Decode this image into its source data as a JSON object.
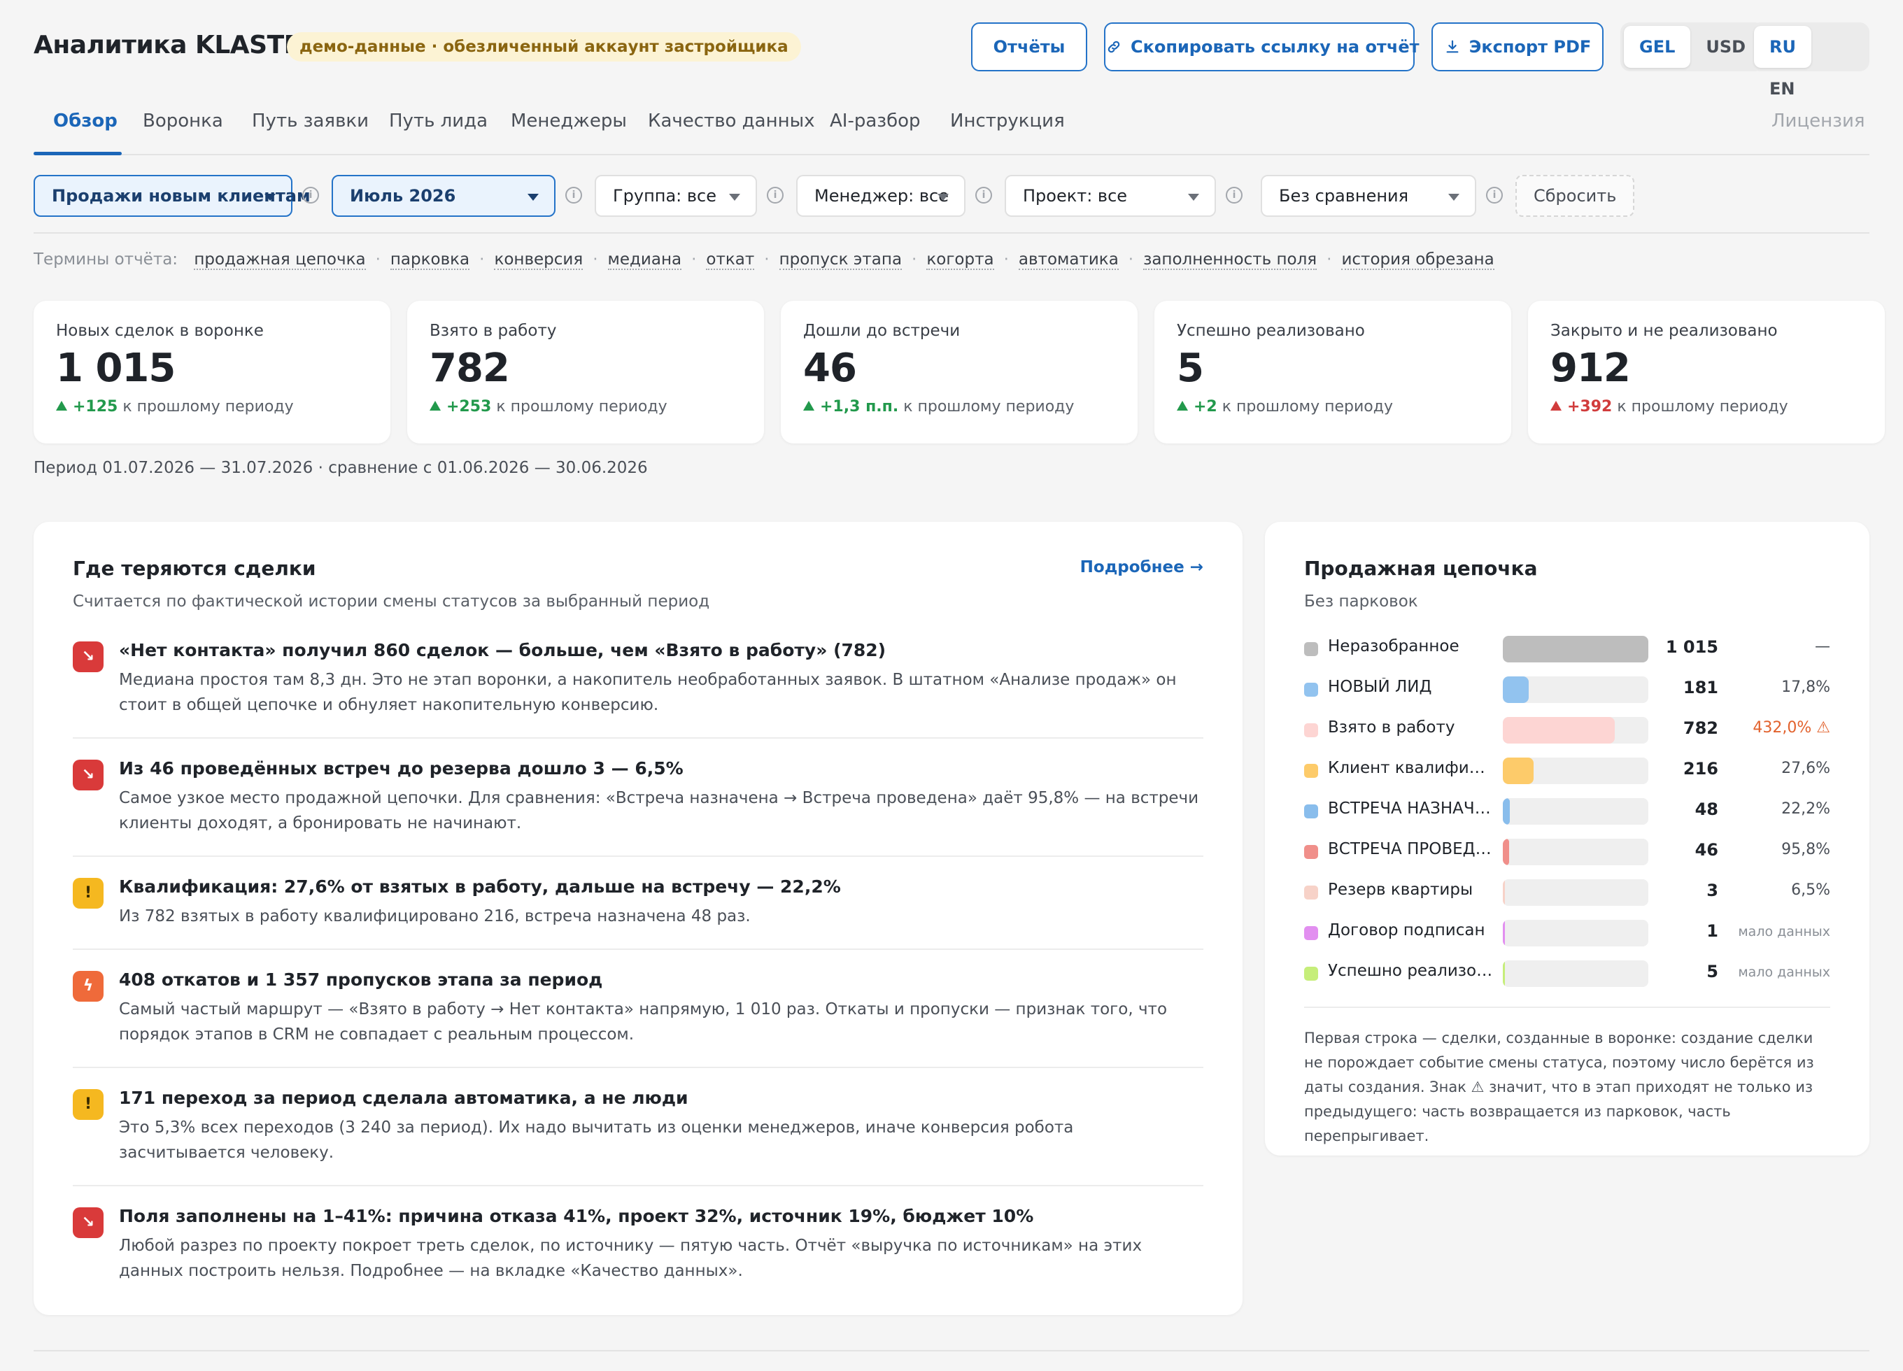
{
  "header": {
    "title": "Аналитика KLASTER",
    "demo_badge": "демо-данные · обезличенный аккаунт застройщика",
    "reports_button": "Отчёты",
    "copy_link_button": "Скопировать ссылку на отчёт",
    "export_pdf_button": "Экспорт PDF",
    "currency": {
      "options": [
        "GEL",
        "USD"
      ],
      "active": "GEL"
    },
    "language": {
      "options": [
        "RU",
        "EN"
      ],
      "active": "RU"
    }
  },
  "tabs": {
    "items": [
      "Обзор",
      "Воронка",
      "Путь заявки",
      "Путь лида",
      "Менеджеры",
      "Качество данных",
      "AI-разбор",
      "Инструкция"
    ],
    "active": "Обзор",
    "license": "Лицензия"
  },
  "filters": {
    "pipeline": "Продажи новым клиентам",
    "month": "Июль 2026",
    "group": "Группа: все",
    "manager": "Менеджер: все",
    "project": "Проект: все",
    "comparison": "Без сравнения",
    "reset": "Сбросить",
    "info_glyph": "i"
  },
  "terms": {
    "label": "Термины отчёта:",
    "items": [
      "продажная цепочка",
      "парковка",
      "конверсия",
      "медиана",
      "откат",
      "пропуск этапа",
      "когорта",
      "автоматика",
      "заполненность поля",
      "история обрезана"
    ]
  },
  "kpis": [
    {
      "label": "Новых сделок в воронке",
      "value": "1 015",
      "delta": "+125",
      "delta_suffix": "к прошлому периоду",
      "trend": "good"
    },
    {
      "label": "Взято в работу",
      "value": "782",
      "delta": "+253",
      "delta_suffix": "к прошлому периоду",
      "trend": "good"
    },
    {
      "label": "Дошли до встречи",
      "value": "46",
      "delta": "+1,3 п.п.",
      "delta_suffix": "к прошлому периоду",
      "trend": "good"
    },
    {
      "label": "Успешно реализовано",
      "value": "5",
      "delta": "+2",
      "delta_suffix": "к прошлому периоду",
      "trend": "good"
    },
    {
      "label": "Закрыто и не реализовано",
      "value": "912",
      "delta": "+392",
      "delta_suffix": "к прошлому периоду",
      "trend": "bad"
    }
  ],
  "period_text": "Период 01.07.2026 — 31.07.2026 · сравнение с 01.06.2026 — 30.06.2026",
  "loss_panel": {
    "title": "Где теряются сделки",
    "subtitle": "Считается по фактической истории смены статусов за выбранный период",
    "more_link": "Подробнее →",
    "items": [
      {
        "icon": "trend-down-icon",
        "tone": "red",
        "glyph": "↘",
        "title": "«Нет контакта» получил 860 сделок — больше, чем «Взято в работу» (782)",
        "text": "Медиана простоя там 8,3 дн. Это не этап воронки, а накопитель необработанных заявок. В штатном «Анализе продаж» он стоит в общей цепочке и обнуляет накопительную конверсию."
      },
      {
        "icon": "trend-down-icon",
        "tone": "red",
        "glyph": "↘",
        "title": "Из 46 проведённых встреч до резерва дошло 3 — 6,5%",
        "text": "Самое узкое место продажной цепочки. Для сравнения: «Встреча назначена → Встреча проведена» даёт 95,8% — на встречи клиенты доходят, а бронировать не начинают."
      },
      {
        "icon": "warning-icon",
        "tone": "yellow",
        "glyph": "!",
        "title": "Квалификация: 27,6% от взятых в работу, дальше на встречу — 22,2%",
        "text": "Из 782 взятых в работу квалифицировано 216, встреча назначена 48 раз."
      },
      {
        "icon": "lightning-icon",
        "tone": "orange",
        "glyph": "ϟ",
        "title": "408 откатов и 1 357 пропусков этапа за период",
        "text": "Самый частый маршрут — «Взято в работу → Нет контакта» напрямую, 1 010 раз. Откаты и пропуски — признак того, что порядок этапов в CRM не совпадает с реальным процессом."
      },
      {
        "icon": "warning-icon",
        "tone": "yellow",
        "glyph": "!",
        "title": "171 переход за период сделала автоматика, а не люди",
        "text": "Это 5,3% всех переходов (3 240 за период). Их надо вычитать из оценки менеджеров, иначе конверсия робота засчитывается человеку."
      },
      {
        "icon": "trend-down-icon",
        "tone": "red",
        "glyph": "↘",
        "title": "Поля заполнены на 1–41%: причина отказа 41%, проект 32%, источник 19%, бюджет 10%",
        "text": "Любой разрез по проекту покроет треть сделок, по источнику — пятую часть. Отчёт «выручка по источникам» на этих данных построить нельзя. Подробнее — на вкладке «Качество данных»."
      }
    ]
  },
  "chain_panel": {
    "title": "Продажная цепочка",
    "subtitle": "Без парковок",
    "max_count": 1015,
    "rows": [
      {
        "name": "Неразобранное",
        "count": 1015,
        "count_label": "1 015",
        "conversion": "—",
        "conv_style": "normal",
        "color": "#bdbdbd"
      },
      {
        "name": "НОВЫЙ ЛИД",
        "count": 181,
        "count_label": "181",
        "conversion": "17,8%",
        "conv_style": "normal",
        "color": "#92c3ef"
      },
      {
        "name": "Взято в работу",
        "count": 782,
        "count_label": "782",
        "conversion": "432,0% ⚠",
        "conv_style": "warn",
        "color": "#fdd5d3"
      },
      {
        "name": "Клиент квалифицир…",
        "count": 216,
        "count_label": "216",
        "conversion": "27,6%",
        "conv_style": "normal",
        "color": "#fdcb6a"
      },
      {
        "name": "ВСТРЕЧА НАЗНАЧЕ…",
        "count": 48,
        "count_label": "48",
        "conversion": "22,2%",
        "conv_style": "normal",
        "color": "#89bdec"
      },
      {
        "name": "ВСТРЕЧА ПРОВЕДЕ…",
        "count": 46,
        "count_label": "46",
        "conversion": "95,8%",
        "conv_style": "normal",
        "color": "#f08f8a"
      },
      {
        "name": "Резерв квартиры",
        "count": 3,
        "count_label": "3",
        "conversion": "6,5%",
        "conv_style": "normal",
        "color": "#f7d2c8"
      },
      {
        "name": "Договор подписан",
        "count": 1,
        "count_label": "1",
        "conversion": "мало данных",
        "conv_style": "small",
        "color": "#e28ff0"
      },
      {
        "name": "Успешно реализова…",
        "count": 5,
        "count_label": "5",
        "conversion": "мало данных",
        "conv_style": "small",
        "color": "#c6ee7a"
      }
    ],
    "note": "Первая строка — сделки, созданные в воронке: создание сделки не порождает событие смены статуса, поэтому число берётся из даты создания. Знак ⚠ значит, что в этап приходят не только из предыдущего: часть возвращается из парковок, часть перепрыгивает."
  }
}
